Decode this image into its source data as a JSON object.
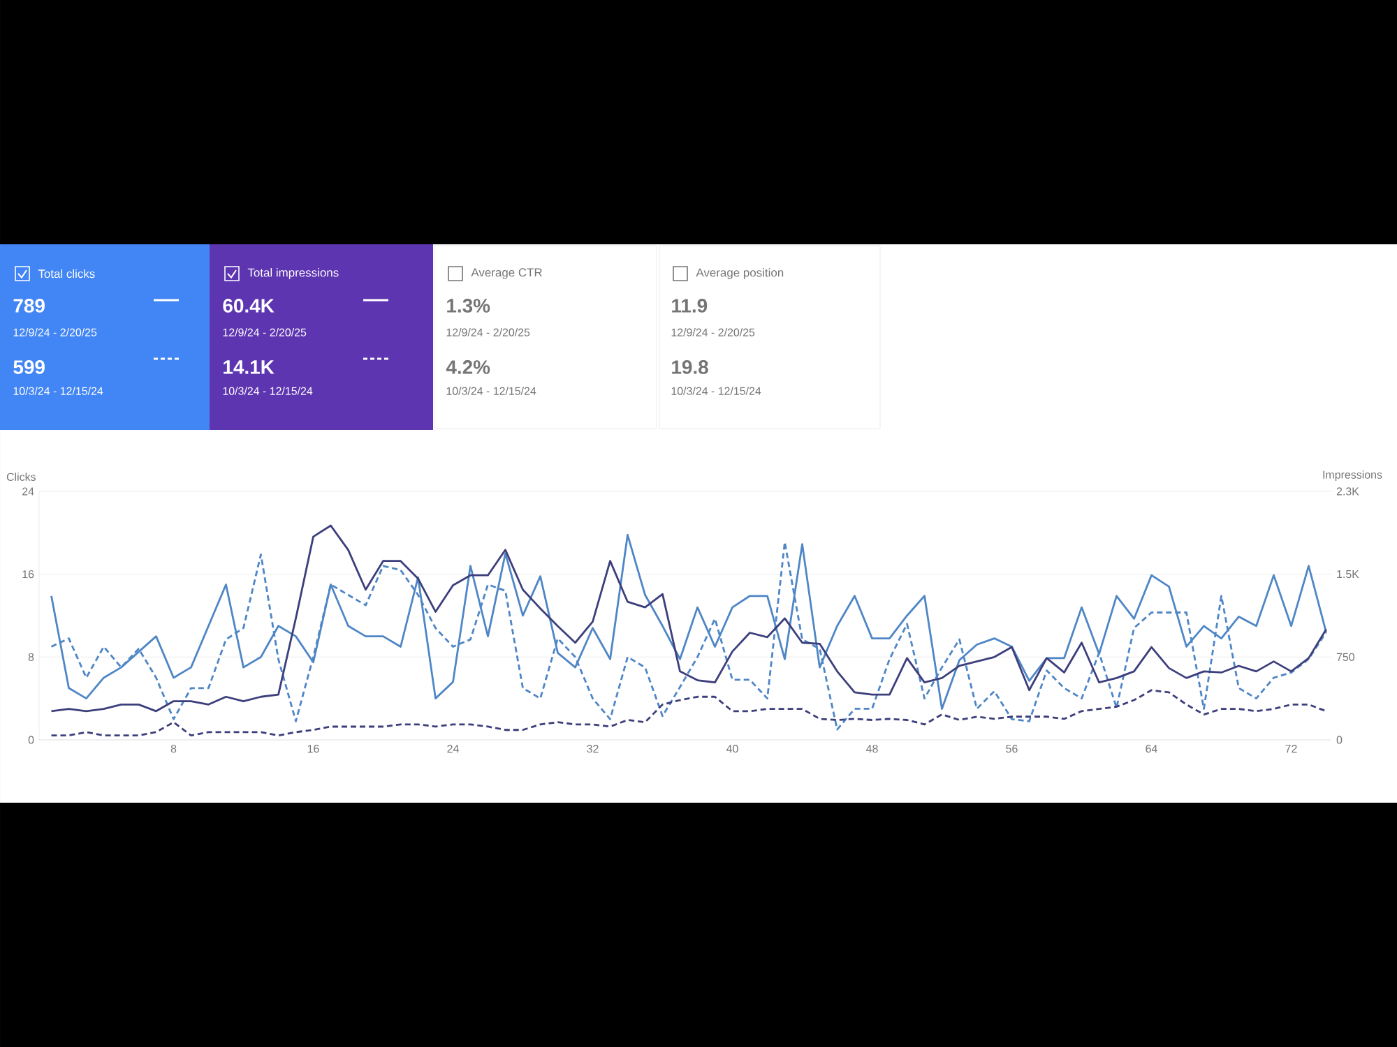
{
  "chart_data": [
    {
      "type": "other",
      "annotations": [
        "Total clicks",
        "789",
        "12/9/24 - 2/20/25",
        "599",
        "10/3/24 - 12/15/24",
        "Total impressions",
        "60.4K",
        "12/9/24 - 2/20/25",
        "14.1K",
        "10/3/24 - 12/15/24",
        "Average CTR",
        "1.3%",
        "12/9/24 - 2/20/25",
        "4.2%",
        "10/3/24 - 12/15/24",
        "Average position",
        "11.9",
        "12/9/24 - 2/20/25",
        "19.8",
        "10/3/24 - 12/15/24"
      ]
    },
    {
      "type": "line",
      "ylabel": "Clicks",
      "y2label": "Impressions",
      "x": [
        1,
        2,
        3,
        4,
        5,
        6,
        7,
        8,
        9,
        10,
        11,
        12,
        13,
        14,
        15,
        16,
        17,
        18,
        19,
        20,
        21,
        22,
        23,
        24,
        25,
        26,
        27,
        28,
        29,
        30,
        31,
        32,
        33,
        34,
        35,
        36,
        37,
        38,
        39,
        40,
        41,
        42,
        43,
        44,
        45,
        46,
        47,
        48,
        49,
        50,
        51,
        52,
        53,
        54,
        55,
        56,
        57,
        58,
        59,
        60,
        61,
        62,
        63,
        64,
        65,
        66,
        67,
        68,
        69,
        70,
        71,
        72,
        73,
        74
      ],
      "xlim": [
        0.3,
        74.3
      ],
      "xticks": [
        8,
        16,
        24,
        32,
        40,
        48,
        56,
        64,
        72
      ],
      "ylim": [
        0,
        24
      ],
      "yticks": [
        0,
        8,
        16,
        24
      ],
      "y2lim": [
        0,
        2250
      ],
      "y2ticks": [
        0,
        750,
        {
          "value": 1500,
          "label": "1.5K"
        },
        {
          "value": 2250,
          "label": "2.3K"
        }
      ],
      "grid": "y",
      "series": [
        {
          "color": "#3d3f7c",
          "line_style": "solid",
          "axis": "y2",
          "values": [
            260,
            280,
            260,
            280,
            320,
            320,
            260,
            350,
            350,
            320,
            390,
            350,
            390,
            410,
            1100,
            1840,
            1940,
            1720,
            1360,
            1620,
            1620,
            1460,
            1160,
            1400,
            1490,
            1490,
            1720,
            1360,
            1190,
            1030,
            880,
            1070,
            1620,
            1250,
            1200,
            1320,
            620,
            540,
            520,
            800,
            970,
            930,
            1100,
            880,
            870,
            620,
            430,
            410,
            410,
            740,
            520,
            560,
            670,
            710,
            750,
            840,
            450,
            740,
            610,
            880,
            520,
            560,
            620,
            840,
            650,
            560,
            620,
            610,
            670,
            620,
            710,
            620,
            740,
            1000
          ]
        },
        {
          "color": "#3d3f7c",
          "line_style": "dashed",
          "axis": "y2",
          "values": [
            40,
            40,
            70,
            40,
            40,
            40,
            70,
            160,
            40,
            70,
            70,
            70,
            70,
            40,
            70,
            90,
            120,
            120,
            120,
            120,
            140,
            140,
            120,
            140,
            140,
            120,
            90,
            90,
            140,
            160,
            140,
            140,
            120,
            180,
            160,
            320,
            360,
            390,
            390,
            260,
            260,
            280,
            280,
            280,
            190,
            180,
            190,
            180,
            190,
            180,
            140,
            230,
            180,
            210,
            190,
            210,
            210,
            210,
            190,
            260,
            280,
            300,
            360,
            450,
            430,
            320,
            230,
            280,
            280,
            260,
            280,
            320,
            320,
            260
          ]
        },
        {
          "color": "#4f86c6",
          "line_style": "dashed",
          "axis": "y",
          "values": [
            9,
            9.8,
            6,
            9,
            7,
            8.8,
            6,
            2,
            5,
            5,
            9.7,
            10.8,
            17.9,
            7.8,
            1.8,
            8,
            15,
            14,
            13,
            16.8,
            16.4,
            14,
            10.8,
            9,
            9.7,
            15,
            14.4,
            5,
            4,
            9.8,
            8,
            4,
            2,
            8,
            7,
            2.3,
            5.1,
            8,
            11.7,
            5.8,
            5.8,
            4,
            19.1,
            9.7,
            8.8,
            1,
            3,
            3,
            7.8,
            11.2,
            4,
            7,
            9.7,
            3,
            4.7,
            2,
            1.8,
            6.7,
            5,
            4,
            8.4,
            3.1,
            10.8,
            12.3,
            12.3,
            12.3,
            3,
            13.9,
            5,
            4,
            6,
            6.5,
            7.8,
            10.4
          ]
        },
        {
          "color": "#4f86c6",
          "line_style": "solid",
          "axis": "y",
          "values": [
            13.9,
            5,
            4,
            6,
            7,
            8.5,
            10,
            6,
            7,
            11,
            15,
            7,
            8,
            11,
            10,
            7.5,
            15,
            11,
            10,
            10,
            9,
            15.7,
            4,
            5.6,
            16.8,
            10,
            18,
            12,
            15.8,
            8.4,
            7,
            10.8,
            7.8,
            19.8,
            14,
            11,
            7.8,
            12.8,
            9,
            12.8,
            13.9,
            13.9,
            7.8,
            18.9,
            7,
            11,
            13.9,
            9.8,
            9.8,
            12,
            13.9,
            3,
            7.7,
            9.2,
            9.8,
            9,
            5.7,
            7.9,
            7.9,
            12.8,
            8.3,
            13.9,
            11.7,
            15.9,
            14.8,
            9,
            11,
            9.8,
            11.9,
            11,
            15.9,
            11,
            16.8,
            10.4
          ]
        }
      ]
    }
  ]
}
